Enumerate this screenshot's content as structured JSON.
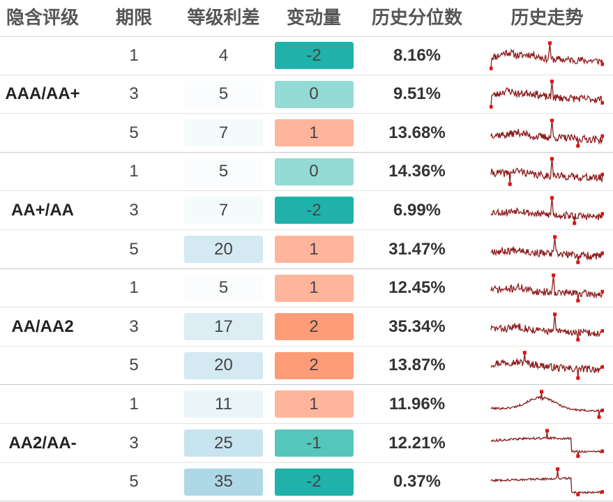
{
  "headers": {
    "rating": "隐含评级",
    "term": "期限",
    "spread": "等级利差",
    "change": "变动量",
    "percentile": "历史分位数",
    "trend": "历史走势"
  },
  "colors": {
    "trend_line": "#8b1a1a",
    "trend_marker": "#e01010",
    "change_neg2": "#20b2aa",
    "change_neg1": "#55c6bb",
    "change_0": "#93dbd4",
    "change_1": "#ffb59c",
    "change_2": "#ff9c78"
  },
  "groups": [
    {
      "rating": "AAA/AA+",
      "rows": [
        {
          "term": "1",
          "spread": "4",
          "change": "-2",
          "percentile": "8.16%",
          "spread_bg": "#ffffff",
          "change_bg": "#20b2aa",
          "trend": {
            "shape": "early",
            "seed": 11,
            "max_at": 0.53,
            "min_at": 0.0,
            "last_at": 1.0
          }
        },
        {
          "term": "3",
          "spread": "5",
          "change": "0",
          "percentile": "9.51%",
          "spread_bg": "#fafcfd",
          "change_bg": "#93dbd4",
          "trend": {
            "shape": "early",
            "seed": 23,
            "max_at": 0.55,
            "min_at": 0.0,
            "last_at": 1.0
          }
        },
        {
          "term": "5",
          "spread": "7",
          "change": "1",
          "percentile": "13.68%",
          "spread_bg": "#f5fafb",
          "change_bg": "#ffb59c",
          "trend": {
            "shape": "spike",
            "seed": 37,
            "max_at": 0.55,
            "min_at": 0.78,
            "last_at": 1.0
          }
        }
      ]
    },
    {
      "rating": "AA+/AA",
      "rows": [
        {
          "term": "1",
          "spread": "5",
          "change": "0",
          "percentile": "14.36%",
          "spread_bg": "#fafcfd",
          "change_bg": "#93dbd4",
          "trend": {
            "shape": "spike",
            "seed": 41,
            "max_at": 0.55,
            "min_at": 0.17,
            "last_at": 1.0
          }
        },
        {
          "term": "3",
          "spread": "7",
          "change": "-2",
          "percentile": "6.99%",
          "spread_bg": "#f5fafb",
          "change_bg": "#20b2aa",
          "trend": {
            "shape": "spike",
            "seed": 53,
            "max_at": 0.55,
            "min_at": 0.75,
            "last_at": 1.0
          }
        },
        {
          "term": "5",
          "spread": "20",
          "change": "1",
          "percentile": "31.47%",
          "spread_bg": "#d4e9f1",
          "change_bg": "#ffb59c",
          "trend": {
            "shape": "spike",
            "seed": 67,
            "max_at": 0.57,
            "min_at": 0.78,
            "last_at": 1.0
          }
        }
      ]
    },
    {
      "rating": "AA/AA2",
      "rows": [
        {
          "term": "1",
          "spread": "5",
          "change": "1",
          "percentile": "12.45%",
          "spread_bg": "#fafcfd",
          "change_bg": "#ffb59c",
          "trend": {
            "shape": "spike",
            "seed": 71,
            "max_at": 0.56,
            "min_at": 0.78,
            "last_at": 1.0
          }
        },
        {
          "term": "3",
          "spread": "17",
          "change": "2",
          "percentile": "35.34%",
          "spread_bg": "#dcedf3",
          "change_bg": "#ff9c78",
          "trend": {
            "shape": "spike",
            "seed": 83,
            "max_at": 0.57,
            "min_at": 0.78,
            "last_at": 1.0
          }
        },
        {
          "term": "5",
          "spread": "20",
          "change": "2",
          "percentile": "13.87%",
          "spread_bg": "#d4e9f1",
          "change_bg": "#ff9c78",
          "trend": {
            "shape": "mid",
            "seed": 97,
            "max_at": 0.3,
            "min_at": 0.78,
            "last_at": 1.0
          }
        }
      ]
    },
    {
      "rating": "AA2/AA-",
      "rows": [
        {
          "term": "1",
          "spread": "11",
          "change": "1",
          "percentile": "11.96%",
          "spread_bg": "#eaf5f8",
          "change_bg": "#ffb59c",
          "trend": {
            "shape": "hump",
            "seed": 101,
            "max_at": 0.45,
            "min_at": 0.97,
            "last_at": 1.0
          }
        },
        {
          "term": "3",
          "spread": "25",
          "change": "-1",
          "percentile": "12.21%",
          "spread_bg": "#c8e4ee",
          "change_bg": "#55c6bb",
          "trend": {
            "shape": "plateau",
            "seed": 113,
            "max_at": 0.5,
            "min_at": 0.78,
            "last_at": 1.0
          }
        },
        {
          "term": "5",
          "spread": "35",
          "change": "-2",
          "percentile": "0.37%",
          "spread_bg": "#afd8e6",
          "change_bg": "#20b2aa",
          "trend": {
            "shape": "plateau_drop",
            "seed": 127,
            "max_at": 0.6,
            "min_at": 0.78,
            "last_at": 1.0
          }
        }
      ]
    }
  ]
}
